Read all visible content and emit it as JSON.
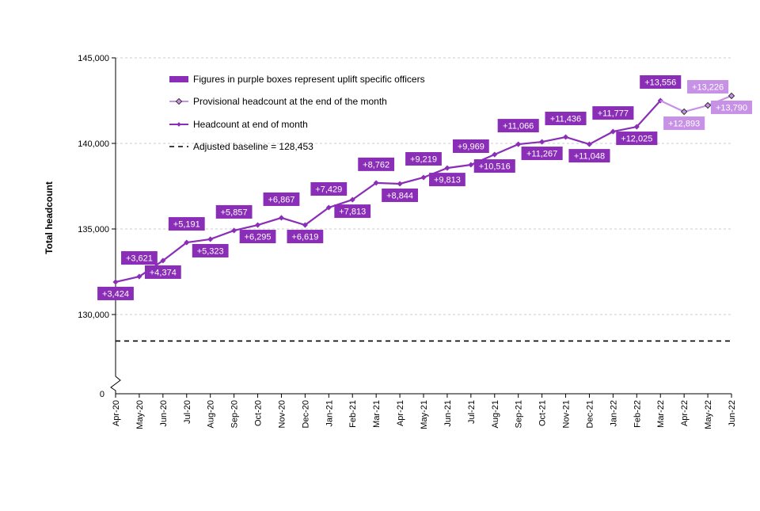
{
  "chart_data": {
    "type": "line",
    "ylabel": "Total headcount",
    "xlabel": "",
    "ylim": [
      130000,
      145000
    ],
    "y_ticks": [
      "145,000",
      "140,000",
      "135,000",
      "130,000"
    ],
    "y_break_tick": "0",
    "y_axis_break": true,
    "grid": "horizontal dashed",
    "legend_placement": "top-left",
    "colors": {
      "headcount": "#8a2eb8",
      "provisional": "#c792e6",
      "box_main": "#8a2eb8",
      "box_provisional": "#c792e6",
      "baseline": "#000000"
    },
    "categories": [
      "Apr-20",
      "May-20",
      "Jun-20",
      "Jul-20",
      "Aug-20",
      "Sep-20",
      "Oct-20",
      "Nov-20",
      "Dec-20",
      "Jan-21",
      "Feb-21",
      "Mar-21",
      "Apr-21",
      "May-21",
      "Jun-21",
      "Jul-21",
      "Aug-21",
      "Sep-21",
      "Oct-21",
      "Nov-21",
      "Dec-21",
      "Jan-22",
      "Feb-22",
      "Mar-22",
      "Apr-22",
      "May-22",
      "Jun-22"
    ],
    "series": [
      {
        "name": "Headcount at end of month",
        "values": [
          131900,
          132220,
          133150,
          134210,
          134400,
          134910,
          135230,
          135650,
          135230,
          136250,
          136710,
          137690,
          137640,
          138010,
          138560,
          138750,
          139350,
          139950,
          140090,
          140370,
          139950,
          140690,
          140970,
          142500,
          null,
          null,
          null
        ]
      },
      {
        "name": "Provisional headcount at the end of the month",
        "values": [
          null,
          null,
          null,
          null,
          null,
          null,
          null,
          null,
          null,
          null,
          null,
          null,
          null,
          null,
          null,
          null,
          null,
          null,
          null,
          null,
          null,
          null,
          null,
          142500,
          141850,
          142220,
          142780
        ]
      }
    ],
    "uplift_labels": [
      "+3,424",
      "+3,621",
      "+4,374",
      "+5,191",
      "+5,323",
      "+5,857",
      "+6,295",
      "+6,867",
      "+6,619",
      "+7,429",
      "+7,813",
      "+8,762",
      "+8,844",
      "+9,219",
      "+9,813",
      "+9,969",
      "+10,516",
      "+11,066",
      "+11,267",
      "+11,436",
      "+11,048",
      "+11,777",
      "+12,025",
      "+13,556",
      "+12,893",
      "+13,226",
      "+13,790"
    ],
    "uplift_label_side": [
      "below",
      "above",
      "below",
      "above",
      "below",
      "above",
      "below",
      "above",
      "below",
      "above",
      "below",
      "above",
      "below",
      "above",
      "below",
      "above",
      "below",
      "above",
      "below",
      "above",
      "below",
      "above",
      "below",
      "above",
      "below",
      "above",
      "below"
    ],
    "baseline": {
      "value": 128453,
      "label": "Adjusted baseline = 128,453"
    },
    "legend": [
      "Figures in purple boxes represent uplift specific officers",
      "Provisional headcount at the end of the month",
      "Headcount at end of month",
      "Adjusted baseline = 128,453"
    ]
  }
}
